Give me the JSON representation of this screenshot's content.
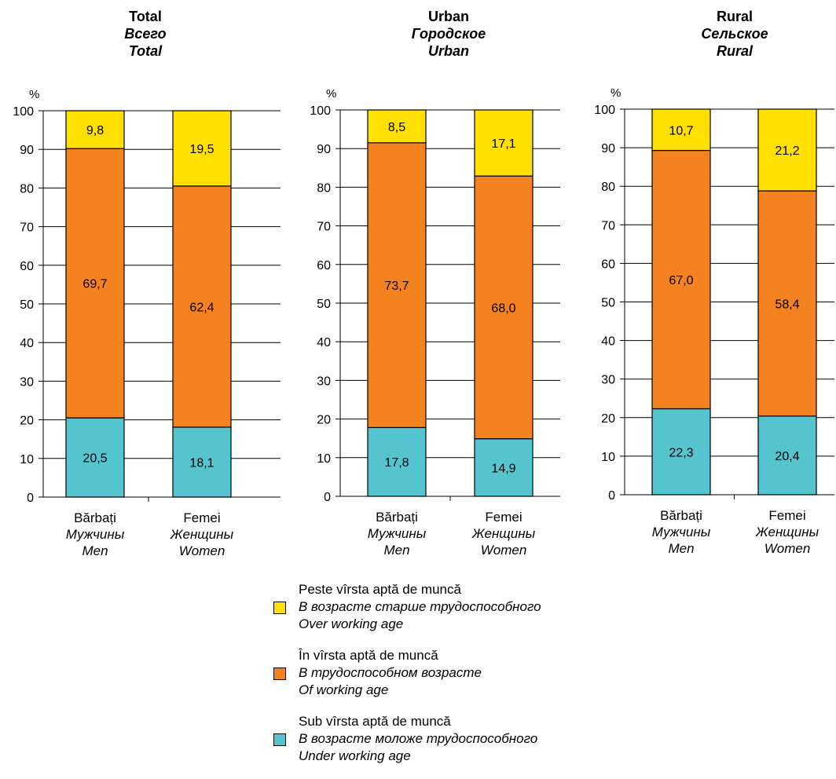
{
  "chart_data": [
    {
      "type": "bar",
      "stacked": true,
      "title": [
        "Total",
        "Всего",
        "Total"
      ],
      "ylabel": "%",
      "ylim": [
        0,
        100
      ],
      "yticks": [
        0,
        10,
        20,
        30,
        40,
        50,
        60,
        70,
        80,
        90,
        100
      ],
      "grid": true,
      "categories": [
        [
          "Bărbați",
          "Мужчины",
          "Men"
        ],
        [
          "Femei",
          "Женщины",
          "Women"
        ]
      ],
      "series": [
        {
          "key": "under",
          "values": [
            20.5,
            18.1
          ],
          "labels": [
            "20,5",
            "18,1"
          ]
        },
        {
          "key": "working",
          "values": [
            69.7,
            62.4
          ],
          "labels": [
            "69,7",
            "62,4"
          ]
        },
        {
          "key": "over",
          "values": [
            9.8,
            19.5
          ],
          "labels": [
            "9,8",
            "19,5"
          ]
        }
      ]
    },
    {
      "type": "bar",
      "stacked": true,
      "title": [
        "Urban",
        "Городское",
        "Urban"
      ],
      "ylabel": "%",
      "ylim": [
        0,
        100
      ],
      "yticks": [
        0,
        10,
        20,
        30,
        40,
        50,
        60,
        70,
        80,
        90,
        100
      ],
      "grid": true,
      "categories": [
        [
          "Bărbați",
          "Мужчины",
          "Men"
        ],
        [
          "Femei",
          "Женщины",
          "Women"
        ]
      ],
      "series": [
        {
          "key": "under",
          "values": [
            17.8,
            14.9
          ],
          "labels": [
            "17,8",
            "14,9"
          ]
        },
        {
          "key": "working",
          "values": [
            73.7,
            68.0
          ],
          "labels": [
            "73,7",
            "68,0"
          ]
        },
        {
          "key": "over",
          "values": [
            8.5,
            17.1
          ],
          "labels": [
            "8,5",
            "17,1"
          ]
        }
      ]
    },
    {
      "type": "bar",
      "stacked": true,
      "title": [
        "Rural",
        "Сельское",
        "Rural"
      ],
      "ylabel": "%",
      "ylim": [
        0,
        100
      ],
      "yticks": [
        0,
        10,
        20,
        30,
        40,
        50,
        60,
        70,
        80,
        90,
        100
      ],
      "grid": true,
      "categories": [
        [
          "Bărbați",
          "Мужчины",
          "Men"
        ],
        [
          "Femei",
          "Женщины",
          "Women"
        ]
      ],
      "series": [
        {
          "key": "under",
          "values": [
            22.3,
            20.4
          ],
          "labels": [
            "22,3",
            "20,4"
          ]
        },
        {
          "key": "working",
          "values": [
            67.0,
            58.4
          ],
          "labels": [
            "67,0",
            "58,4"
          ]
        },
        {
          "key": "over",
          "values": [
            10.7,
            21.2
          ],
          "labels": [
            "10,7",
            "21,2"
          ]
        }
      ]
    }
  ],
  "colors": {
    "under": "#55c4cf",
    "working": "#f58220",
    "over": "#ffe000"
  },
  "legend": {
    "placement": "bottom-center",
    "items": [
      {
        "key": "over",
        "ro": "Peste vîrsta aptă de muncă",
        "ru": "В возрасте старше трудоспособного",
        "en": "Over working age"
      },
      {
        "key": "working",
        "ro": "În vîrsta aptă de muncă",
        "ru": "В трудоспособном возрасте",
        "en": "Of working age"
      },
      {
        "key": "under",
        "ro": "Sub vîrsta aptă de muncă",
        "ru": "В возрасте моложе трудоспособного",
        "en": "Under working age"
      }
    ]
  }
}
